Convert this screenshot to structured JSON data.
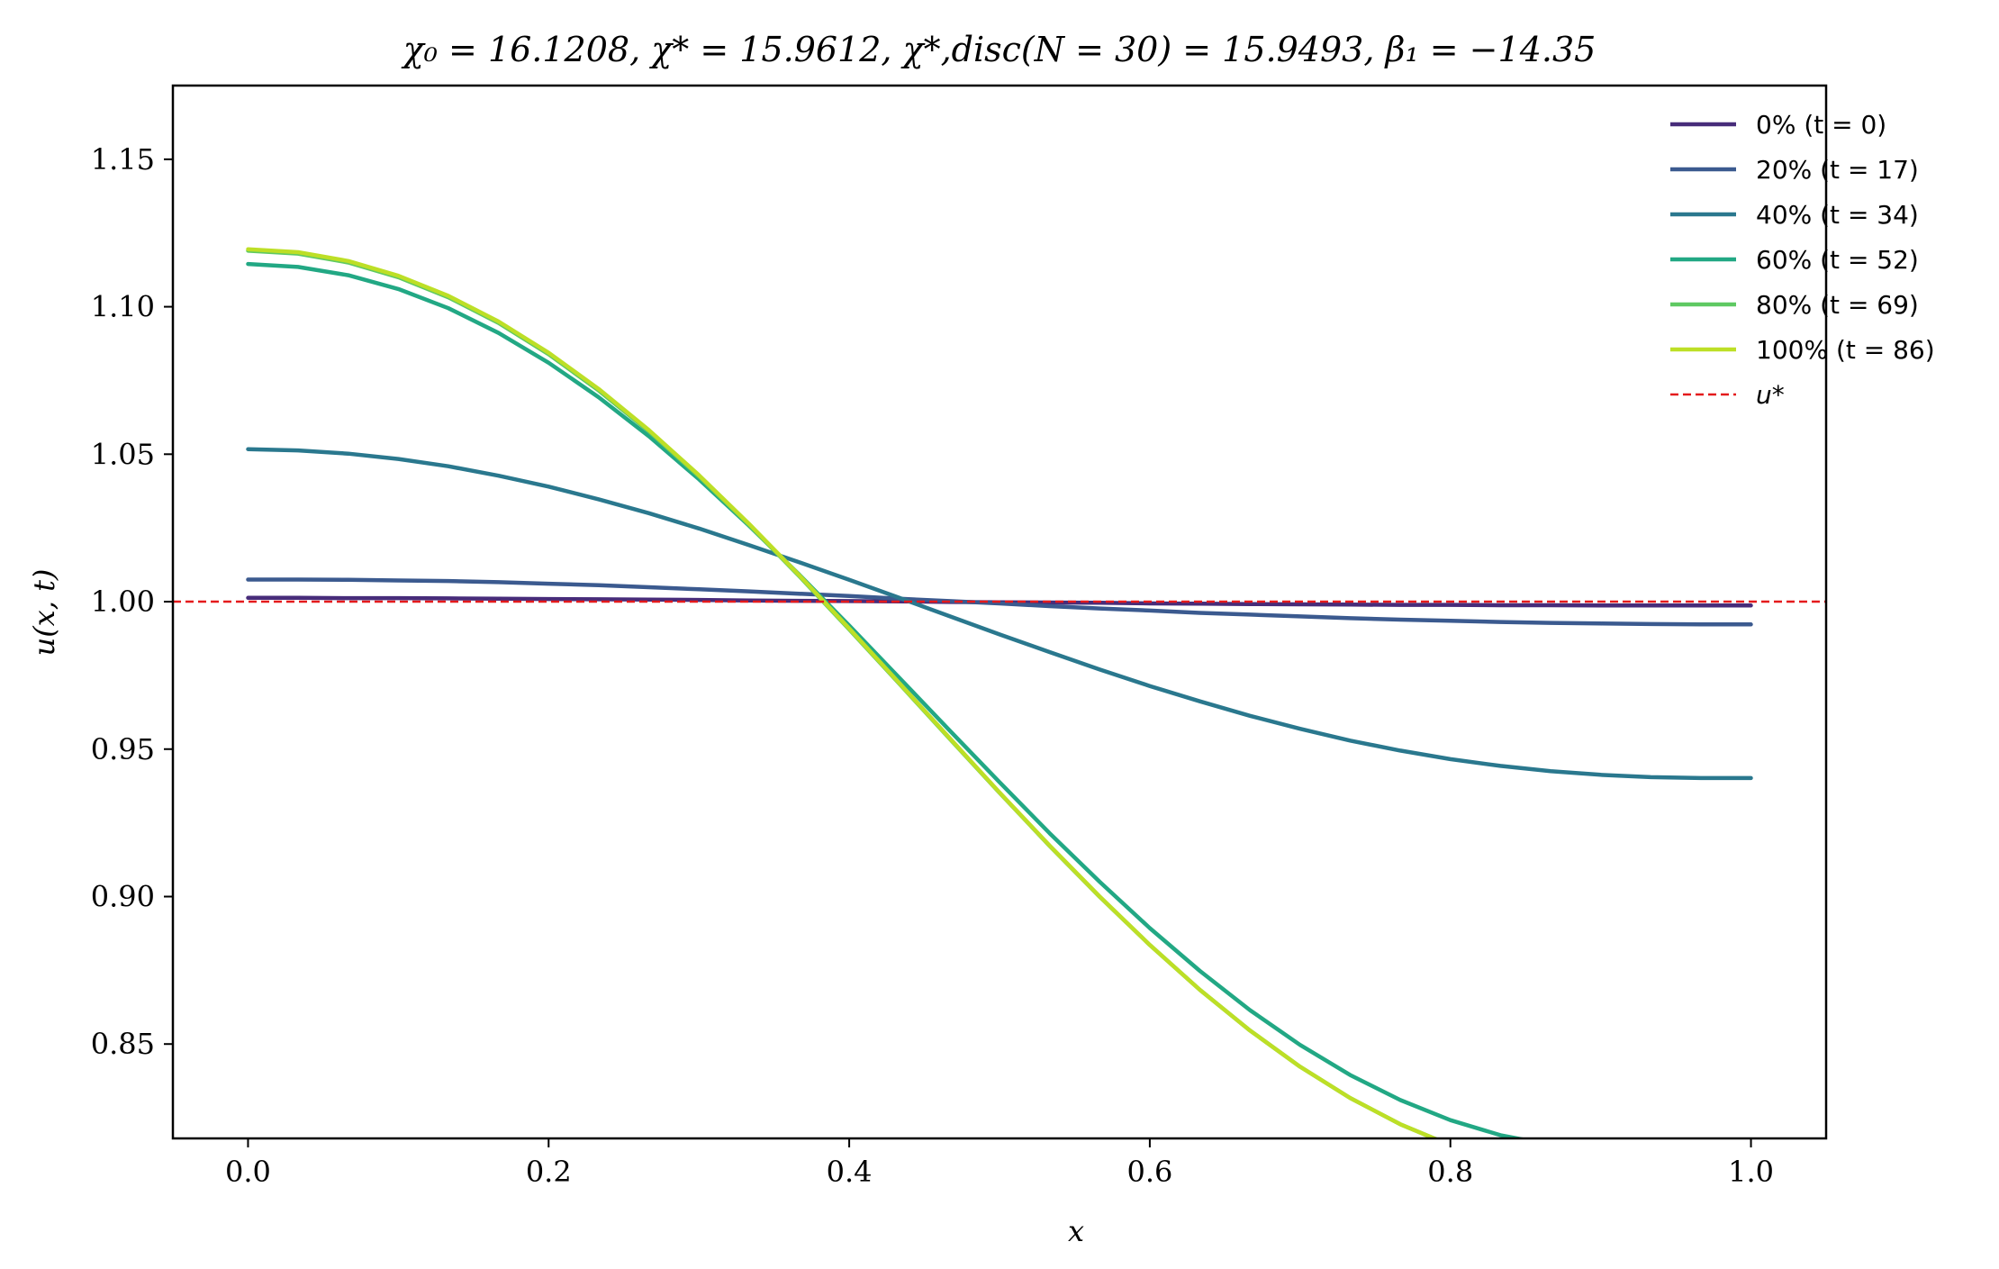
{
  "chart_data": {
    "type": "line",
    "title": "χ₀ = 16.1208,  χ* = 15.9612,  χ*,disc(N = 30) = 15.9493,  β₁ = −14.35",
    "xlabel": "x",
    "ylabel": "u(x, t)",
    "xlim": [
      -0.05,
      1.05
    ],
    "ylim": [
      0.818,
      1.175
    ],
    "xticks": [
      0.0,
      0.2,
      0.4,
      0.6,
      0.8,
      1.0
    ],
    "xtick_labels": [
      "0.0",
      "0.2",
      "0.4",
      "0.6",
      "0.8",
      "1.0"
    ],
    "yticks": [
      0.85,
      0.9,
      0.95,
      1.0,
      1.05,
      1.1,
      1.15
    ],
    "ytick_labels": [
      "0.85",
      "0.90",
      "0.95",
      "1.00",
      "1.05",
      "1.10",
      "1.15"
    ],
    "grid": false,
    "legend": "top-right",
    "reference_line": {
      "name": "u*",
      "y": 1.0,
      "color": "#e41a1c",
      "style": "dashed"
    },
    "x": [
      0.0,
      0.0333,
      0.0667,
      0.1,
      0.1333,
      0.1667,
      0.2,
      0.2333,
      0.2667,
      0.3,
      0.3333,
      0.3667,
      0.4,
      0.4333,
      0.4667,
      0.5,
      0.5333,
      0.5667,
      0.6,
      0.6333,
      0.6667,
      0.7,
      0.7333,
      0.7667,
      0.8,
      0.8333,
      0.8667,
      0.9,
      0.9333,
      0.9667,
      1.0
    ],
    "series": [
      {
        "name": "0% (t = 0)",
        "color": "#472c7a",
        "values": [
          1.0013,
          1.0013,
          1.0012,
          1.0012,
          1.0011,
          1.001,
          1.0009,
          1.0008,
          1.0007,
          1.0006,
          1.0004,
          1.0003,
          1.0002,
          1.0001,
          0.9999,
          0.9998,
          0.9997,
          0.9996,
          0.9994,
          0.9993,
          0.9992,
          0.9991,
          0.999,
          0.9989,
          0.9989,
          0.9988,
          0.9988,
          0.9987,
          0.9987,
          0.9987,
          0.9987
        ]
      },
      {
        "name": "20% (t = 17)",
        "color": "#3b5a8f",
        "values": [
          1.0075,
          1.0075,
          1.0074,
          1.0072,
          1.007,
          1.0066,
          1.0061,
          1.0056,
          1.0049,
          1.0042,
          1.0035,
          1.0027,
          1.0019,
          1.001,
          1.0002,
          0.9994,
          0.9985,
          0.9977,
          0.997,
          0.9962,
          0.9956,
          0.995,
          0.9944,
          0.9939,
          0.9935,
          0.9931,
          0.9928,
          0.9926,
          0.9924,
          0.9923,
          0.9923
        ]
      },
      {
        "name": "40% (t = 34)",
        "color": "#2a788e",
        "values": [
          1.0517,
          1.0513,
          1.0502,
          1.0484,
          1.0459,
          1.0427,
          1.039,
          1.0347,
          1.03,
          1.0248,
          1.0192,
          1.0134,
          1.0074,
          1.0013,
          0.9951,
          0.9889,
          0.9829,
          0.977,
          0.9714,
          0.9662,
          0.9613,
          0.9569,
          0.9529,
          0.9495,
          0.9466,
          0.9443,
          0.9425,
          0.9413,
          0.9405,
          0.9402,
          0.9402
        ]
      },
      {
        "name": "60% (t = 52)",
        "color": "#22a884",
        "values": [
          1.1145,
          1.1135,
          1.1107,
          1.106,
          1.0995,
          1.0911,
          1.081,
          1.0693,
          1.0561,
          1.0415,
          1.0258,
          1.0092,
          0.9919,
          0.9742,
          0.9564,
          0.9388,
          0.9215,
          0.905,
          0.8893,
          0.8748,
          0.8615,
          0.8497,
          0.8395,
          0.831,
          0.8242,
          0.8191,
          0.8158,
          0.8142,
          0.8142,
          0.8142,
          0.8142
        ]
      },
      {
        "name": "80% (t = 69)",
        "color": "#5ec962",
        "values": [
          1.119,
          1.118,
          1.115,
          1.11,
          1.1032,
          1.0945,
          1.0839,
          1.0716,
          1.0578,
          1.0425,
          1.0261,
          1.0087,
          0.9906,
          0.9722,
          0.9536,
          0.9352,
          0.9172,
          0.8999,
          0.8836,
          0.8684,
          0.8546,
          0.8423,
          0.8317,
          0.8228,
          0.8157,
          0.8105,
          0.8071,
          0.8055,
          0.8055,
          0.8055,
          0.8055
        ]
      },
      {
        "name": "100% (t = 86)",
        "color": "#bddf26",
        "values": [
          1.1195,
          1.1185,
          1.1155,
          1.1105,
          1.1037,
          1.095,
          1.0844,
          1.0721,
          1.0582,
          1.0429,
          1.0264,
          1.009,
          0.9909,
          0.9724,
          0.9538,
          0.9353,
          0.9173,
          0.9,
          0.8836,
          0.8684,
          0.8546,
          0.8423,
          0.8317,
          0.8228,
          0.8157,
          0.8105,
          0.8071,
          0.8055,
          0.8055,
          0.8055,
          0.8055
        ]
      }
    ]
  }
}
